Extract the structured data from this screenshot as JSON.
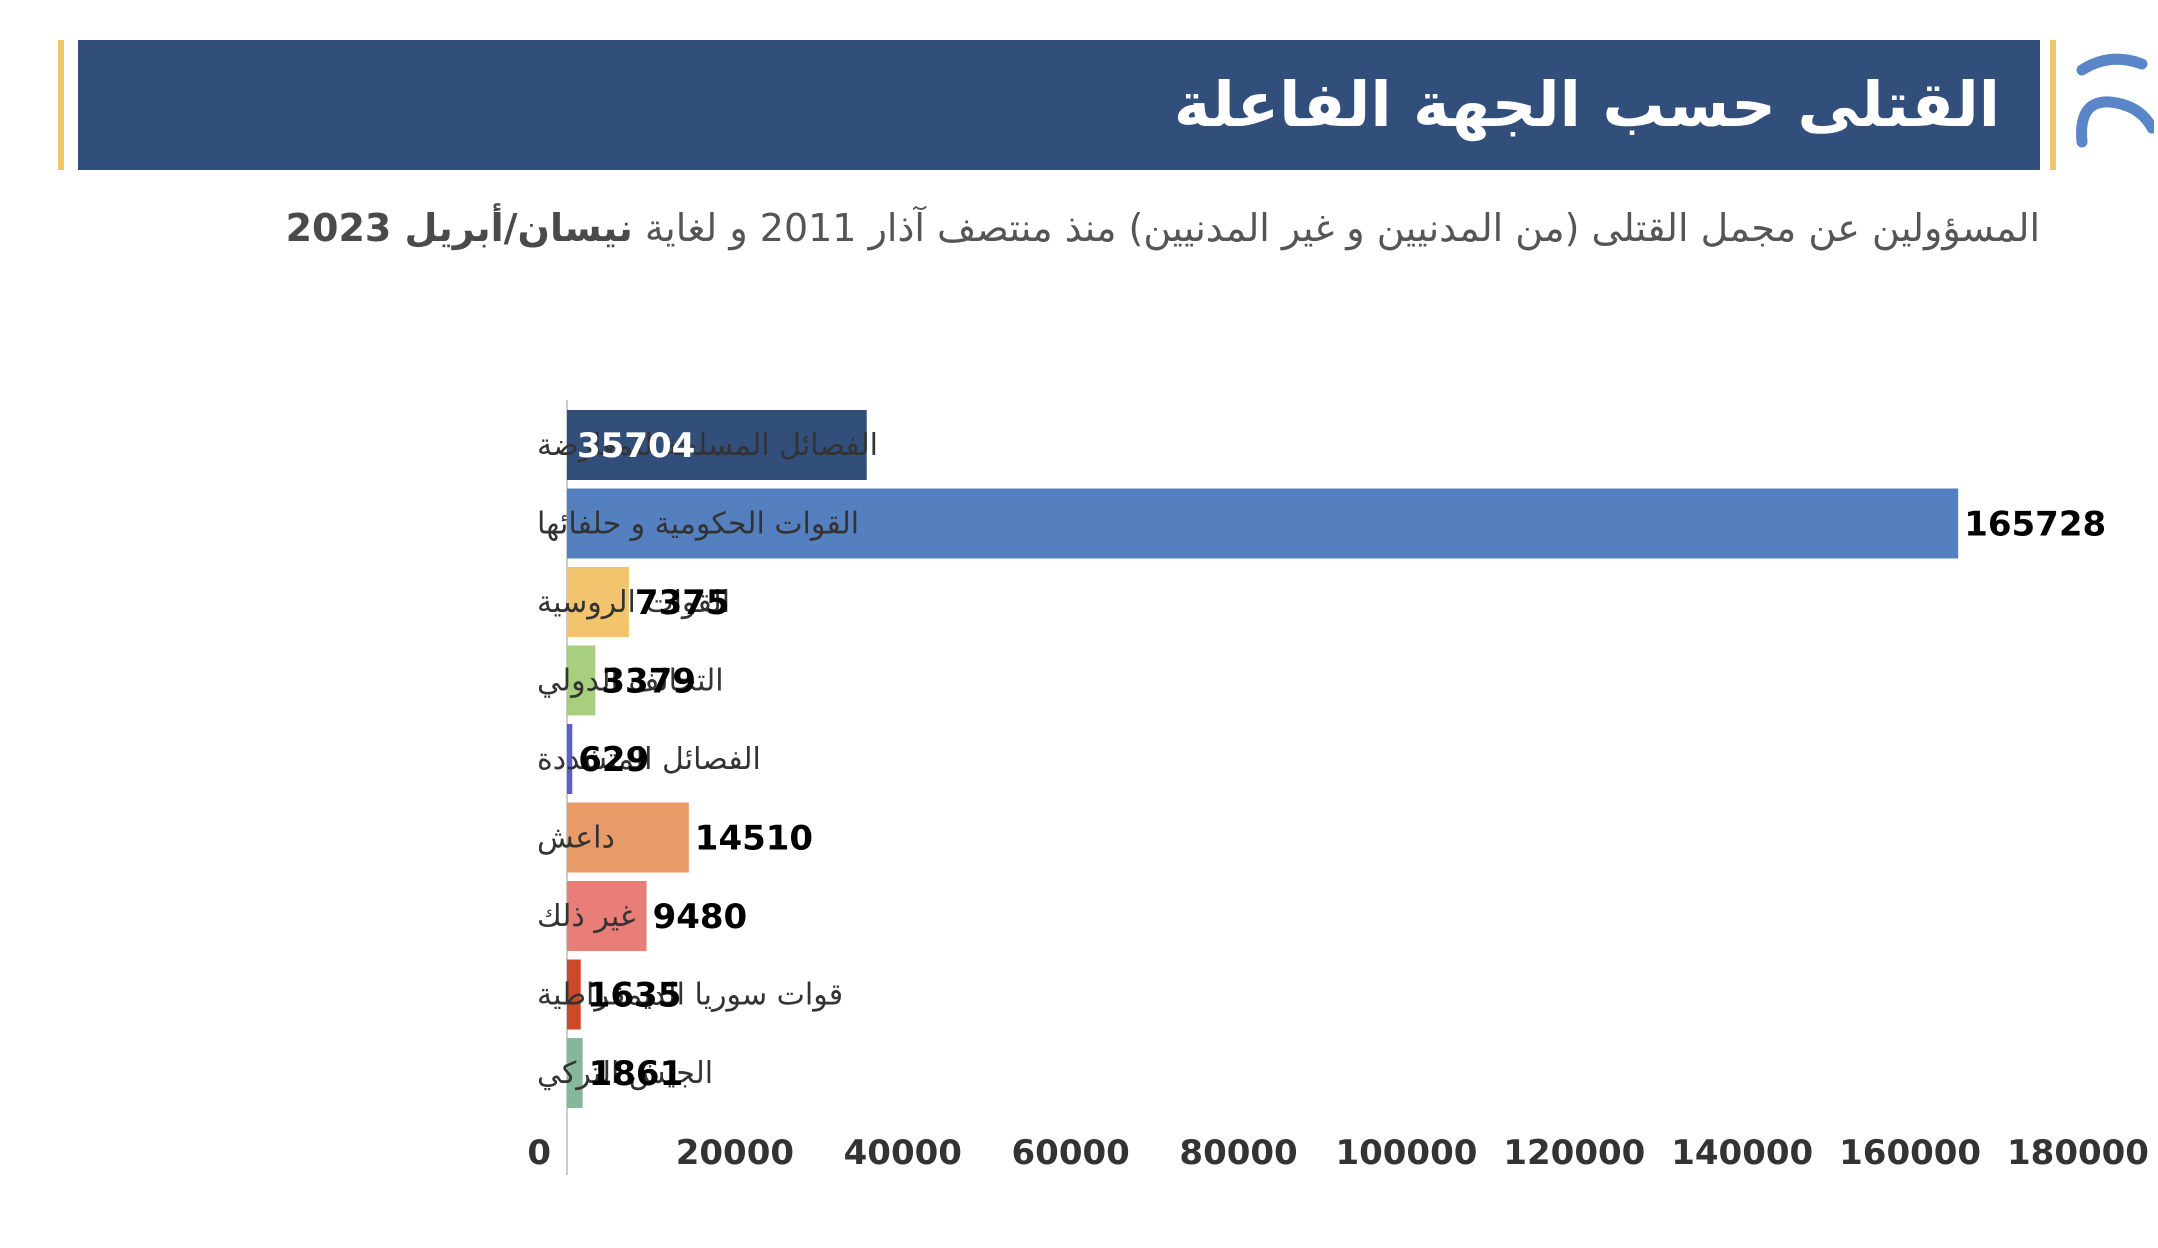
{
  "header": {
    "title": "القتلى حسب الجهة الفاعلة",
    "subtitle_main": "المسؤولين عن مجمل القتلى (من المدنيين و غير المدنيين) منذ منتصف آذار 2011 و لغاية",
    "subtitle_bold": "نيسان/أبريل 2023"
  },
  "colors": {
    "banner": "#324f7c",
    "accent_gold": "#f2c46d",
    "logo_blue": "#5a86c7"
  },
  "icons": {
    "logo": "organization-logo-icon"
  },
  "chart_data": {
    "type": "bar",
    "orientation": "horizontal",
    "categories": [
      "الفصائل المسلحة للمعارضة",
      "القوات الحكومية و حلفائها",
      "القوات الروسية",
      "التحالف الدولي",
      "الفصائل المتشددة",
      "داعش",
      "غير ذلك",
      "قوات سوريا الديمقراطية",
      "الجيش التركي"
    ],
    "values": [
      35704,
      165728,
      7375,
      3379,
      629,
      14510,
      9480,
      1635,
      1861
    ],
    "value_labels": [
      "35704",
      "165728",
      "7375",
      "3379",
      "629",
      "14510",
      "9480",
      "1635",
      "1861"
    ],
    "bar_colors": [
      "#324f7c",
      "#5580bf",
      "#f2c46d",
      "#a8cf7d",
      "#5b5fc7",
      "#e89a67",
      "#e97e78",
      "#cc4a2a",
      "#85b89a"
    ],
    "label_colors": [
      "#ffffff",
      "#000000",
      "#000000",
      "#000000",
      "#000000",
      "#000000",
      "#000000",
      "#000000",
      "#000000"
    ],
    "xlim": [
      0,
      180000
    ],
    "xticks": [
      0,
      20000,
      40000,
      60000,
      80000,
      100000,
      120000,
      140000,
      160000,
      180000
    ],
    "xtick_labels": [
      "0",
      "20000",
      "40000",
      "60000",
      "80000",
      "100000",
      "120000",
      "140000",
      "160000",
      "180000"
    ],
    "grid": false,
    "legend": false
  }
}
